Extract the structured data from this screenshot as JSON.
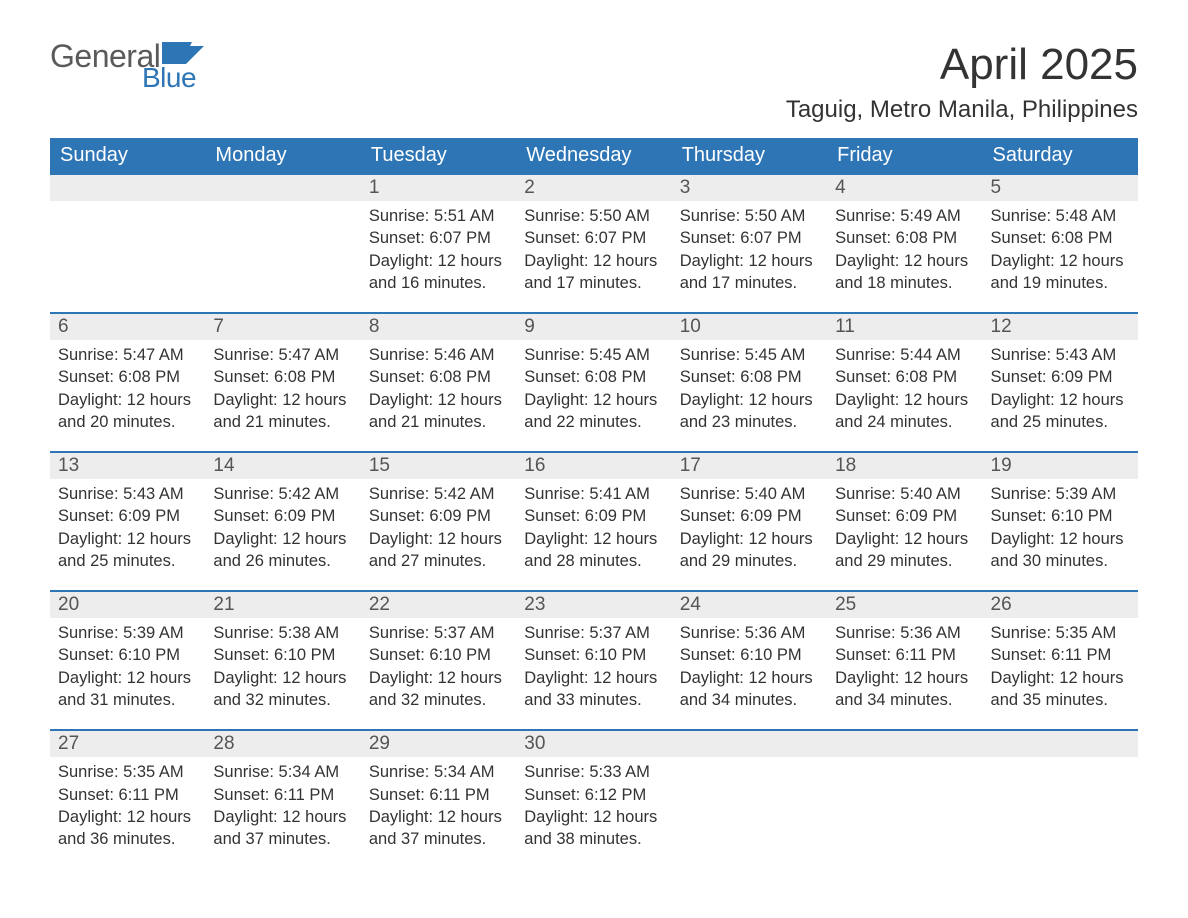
{
  "logo": {
    "main": "General",
    "sub": "Blue",
    "logo_color": "#2e75b6"
  },
  "title": "April 2025",
  "subtitle": "Taguig, Metro Manila, Philippines",
  "colors": {
    "header_bg": "#2e75b6",
    "header_text": "#ffffff",
    "daynum_bg": "#ededed",
    "daynum_text": "#555555",
    "body_text": "#333333",
    "row_divider": "#2e75b6"
  },
  "day_headers": [
    "Sunday",
    "Monday",
    "Tuesday",
    "Wednesday",
    "Thursday",
    "Friday",
    "Saturday"
  ],
  "weeks": [
    {
      "days": [
        null,
        null,
        {
          "n": "1",
          "sr": "5:51 AM",
          "ss": "6:07 PM",
          "dl": "12 hours and 16 minutes."
        },
        {
          "n": "2",
          "sr": "5:50 AM",
          "ss": "6:07 PM",
          "dl": "12 hours and 17 minutes."
        },
        {
          "n": "3",
          "sr": "5:50 AM",
          "ss": "6:07 PM",
          "dl": "12 hours and 17 minutes."
        },
        {
          "n": "4",
          "sr": "5:49 AM",
          "ss": "6:08 PM",
          "dl": "12 hours and 18 minutes."
        },
        {
          "n": "5",
          "sr": "5:48 AM",
          "ss": "6:08 PM",
          "dl": "12 hours and 19 minutes."
        }
      ]
    },
    {
      "days": [
        {
          "n": "6",
          "sr": "5:47 AM",
          "ss": "6:08 PM",
          "dl": "12 hours and 20 minutes."
        },
        {
          "n": "7",
          "sr": "5:47 AM",
          "ss": "6:08 PM",
          "dl": "12 hours and 21 minutes."
        },
        {
          "n": "8",
          "sr": "5:46 AM",
          "ss": "6:08 PM",
          "dl": "12 hours and 21 minutes."
        },
        {
          "n": "9",
          "sr": "5:45 AM",
          "ss": "6:08 PM",
          "dl": "12 hours and 22 minutes."
        },
        {
          "n": "10",
          "sr": "5:45 AM",
          "ss": "6:08 PM",
          "dl": "12 hours and 23 minutes."
        },
        {
          "n": "11",
          "sr": "5:44 AM",
          "ss": "6:08 PM",
          "dl": "12 hours and 24 minutes."
        },
        {
          "n": "12",
          "sr": "5:43 AM",
          "ss": "6:09 PM",
          "dl": "12 hours and 25 minutes."
        }
      ]
    },
    {
      "days": [
        {
          "n": "13",
          "sr": "5:43 AM",
          "ss": "6:09 PM",
          "dl": "12 hours and 25 minutes."
        },
        {
          "n": "14",
          "sr": "5:42 AM",
          "ss": "6:09 PM",
          "dl": "12 hours and 26 minutes."
        },
        {
          "n": "15",
          "sr": "5:42 AM",
          "ss": "6:09 PM",
          "dl": "12 hours and 27 minutes."
        },
        {
          "n": "16",
          "sr": "5:41 AM",
          "ss": "6:09 PM",
          "dl": "12 hours and 28 minutes."
        },
        {
          "n": "17",
          "sr": "5:40 AM",
          "ss": "6:09 PM",
          "dl": "12 hours and 29 minutes."
        },
        {
          "n": "18",
          "sr": "5:40 AM",
          "ss": "6:09 PM",
          "dl": "12 hours and 29 minutes."
        },
        {
          "n": "19",
          "sr": "5:39 AM",
          "ss": "6:10 PM",
          "dl": "12 hours and 30 minutes."
        }
      ]
    },
    {
      "days": [
        {
          "n": "20",
          "sr": "5:39 AM",
          "ss": "6:10 PM",
          "dl": "12 hours and 31 minutes."
        },
        {
          "n": "21",
          "sr": "5:38 AM",
          "ss": "6:10 PM",
          "dl": "12 hours and 32 minutes."
        },
        {
          "n": "22",
          "sr": "5:37 AM",
          "ss": "6:10 PM",
          "dl": "12 hours and 32 minutes."
        },
        {
          "n": "23",
          "sr": "5:37 AM",
          "ss": "6:10 PM",
          "dl": "12 hours and 33 minutes."
        },
        {
          "n": "24",
          "sr": "5:36 AM",
          "ss": "6:10 PM",
          "dl": "12 hours and 34 minutes."
        },
        {
          "n": "25",
          "sr": "5:36 AM",
          "ss": "6:11 PM",
          "dl": "12 hours and 34 minutes."
        },
        {
          "n": "26",
          "sr": "5:35 AM",
          "ss": "6:11 PM",
          "dl": "12 hours and 35 minutes."
        }
      ]
    },
    {
      "days": [
        {
          "n": "27",
          "sr": "5:35 AM",
          "ss": "6:11 PM",
          "dl": "12 hours and 36 minutes."
        },
        {
          "n": "28",
          "sr": "5:34 AM",
          "ss": "6:11 PM",
          "dl": "12 hours and 37 minutes."
        },
        {
          "n": "29",
          "sr": "5:34 AM",
          "ss": "6:11 PM",
          "dl": "12 hours and 37 minutes."
        },
        {
          "n": "30",
          "sr": "5:33 AM",
          "ss": "6:12 PM",
          "dl": "12 hours and 38 minutes."
        },
        null,
        null,
        null
      ]
    }
  ],
  "labels": {
    "sunrise": "Sunrise: ",
    "sunset": "Sunset: ",
    "daylight": "Daylight: "
  }
}
